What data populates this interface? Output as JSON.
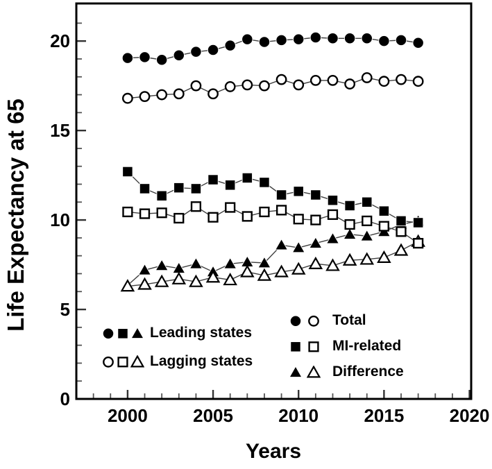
{
  "chart_data": {
    "type": "line",
    "title": "",
    "xlabel": "Years",
    "ylabel": "Life Expectancy at 65",
    "xlim": [
      1997,
      2020.1
    ],
    "ylim": [
      0,
      22.1
    ],
    "x_ticks": [
      2000,
      2005,
      2010,
      2015,
      2020
    ],
    "y_ticks": [
      0,
      5,
      10,
      15,
      20
    ],
    "x_minor_ticks_range": [
      1998,
      2019
    ],
    "y_minor_ticks_range": [
      1,
      21
    ],
    "grid": "off",
    "x": [
      2000,
      2001,
      2002,
      2003,
      2004,
      2005,
      2006,
      2007,
      2008,
      2009,
      2010,
      2011,
      2012,
      2013,
      2014,
      2015,
      2016,
      2017
    ],
    "series": [
      {
        "name": "Leading states - Total",
        "group": "Leading states",
        "measure": "Total",
        "marker": "filled-circle",
        "values": [
          19.05,
          19.1,
          18.95,
          19.2,
          19.4,
          19.5,
          19.75,
          20.1,
          19.95,
          20.05,
          20.1,
          20.2,
          20.15,
          20.15,
          20.15,
          20.0,
          20.05,
          19.9
        ]
      },
      {
        "name": "Lagging states - Total",
        "group": "Lagging states",
        "measure": "Total",
        "marker": "open-circle",
        "values": [
          16.8,
          16.9,
          17.0,
          17.05,
          17.5,
          17.05,
          17.45,
          17.55,
          17.5,
          17.85,
          17.55,
          17.8,
          17.8,
          17.6,
          17.95,
          17.75,
          17.85,
          17.75
        ]
      },
      {
        "name": "Leading states - MI-related",
        "group": "Leading states",
        "measure": "MI-related",
        "marker": "filled-square",
        "values": [
          12.7,
          11.75,
          11.35,
          11.8,
          11.75,
          12.25,
          11.95,
          12.35,
          12.1,
          11.4,
          11.6,
          11.4,
          11.1,
          10.8,
          11.0,
          10.5,
          9.95,
          9.85
        ]
      },
      {
        "name": "Lagging states - MI-related",
        "group": "Lagging states",
        "measure": "MI-related",
        "marker": "open-square",
        "values": [
          10.45,
          10.35,
          10.4,
          10.1,
          10.75,
          10.15,
          10.7,
          10.2,
          10.45,
          10.55,
          10.05,
          10.0,
          10.3,
          9.75,
          9.95,
          9.65,
          9.35,
          8.7
        ]
      },
      {
        "name": "Leading states - Difference",
        "group": "Leading states",
        "measure": "Difference",
        "marker": "filled-triangle",
        "values": [
          6.35,
          7.2,
          7.45,
          7.3,
          7.55,
          7.1,
          7.55,
          7.65,
          7.6,
          8.6,
          8.45,
          8.7,
          8.95,
          9.2,
          9.1,
          9.35,
          9.75,
          9.95
        ]
      },
      {
        "name": "Lagging states - Difference",
        "group": "Lagging states",
        "measure": "Difference",
        "marker": "open-triangle",
        "values": [
          6.3,
          6.4,
          6.55,
          6.7,
          6.55,
          6.8,
          6.65,
          7.1,
          6.9,
          7.1,
          7.25,
          7.55,
          7.45,
          7.75,
          7.8,
          7.9,
          8.3,
          8.8
        ]
      }
    ],
    "legend": {
      "state_groups": [
        {
          "symbols": "●■▲",
          "label": "Leading states",
          "markers": [
            "filled-circle",
            "filled-square",
            "filled-triangle"
          ]
        },
        {
          "symbols": "○□△",
          "label": "Lagging states",
          "markers": [
            "open-circle",
            "open-square",
            "open-triangle"
          ]
        }
      ],
      "measures": [
        {
          "symbols": "● ○",
          "label": "Total",
          "markers": [
            "filled-circle",
            "open-circle"
          ]
        },
        {
          "symbols": "■ □",
          "label": "MI-related",
          "markers": [
            "filled-square",
            "open-square"
          ]
        },
        {
          "symbols": "▲ △",
          "label": "Difference",
          "markers": [
            "filled-triangle",
            "open-triangle"
          ]
        }
      ],
      "position": "inside-bottom"
    },
    "colors": {
      "ink": "#000000",
      "line": "#3f3f3f",
      "background": "#ffffff"
    }
  }
}
